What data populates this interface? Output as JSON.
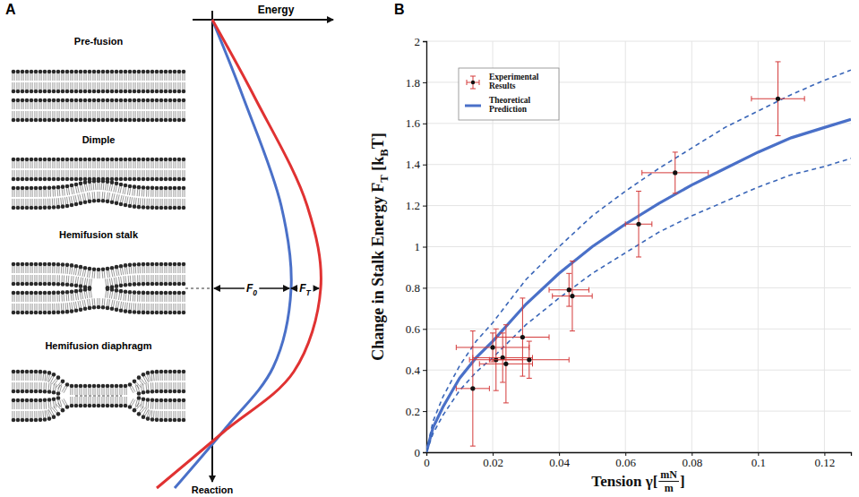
{
  "diagram": {
    "panel_label": "A",
    "stages": [
      "Pre-fusion",
      "Dimple",
      "Hemifusion stalk",
      "Hemifusion diaphragm"
    ],
    "energy_label": "Energy",
    "reaction_label": "Reaction",
    "barrier_labels": [
      [
        "F",
        {
          "sub": "0"
        }
      ],
      [
        "F",
        {
          "sub": "T"
        }
      ]
    ],
    "curve_colors": [
      "#4a70c8",
      "#e03232"
    ]
  },
  "chart_data": {
    "type": "scatter",
    "panel_label": "B",
    "x_label": [
      "Tension γ[",
      {
        "frac": [
          "mN",
          "m"
        ]
      },
      "]"
    ],
    "y_label": [
      "Change in Stalk Energy F",
      {
        "sub": "T"
      },
      " [k",
      {
        "sub": "B"
      },
      "T]"
    ],
    "xlim": [
      0,
      0.128
    ],
    "xticks": [
      0,
      0.02,
      0.04,
      0.06,
      0.08,
      0.1,
      0.12
    ],
    "ylim": [
      0,
      2
    ],
    "yticks": [
      0,
      0.2,
      0.4,
      0.6,
      0.8,
      1,
      1.2,
      1.4,
      1.6,
      1.8,
      2
    ],
    "grid": true,
    "legend": "upper left",
    "series": [
      {
        "name": "Experimental Results",
        "type": "scatter",
        "color": "#d43a3a",
        "marker": "circle",
        "x": [
          0.014,
          0.02,
          0.021,
          0.023,
          0.024,
          0.029,
          0.031,
          0.043,
          0.044,
          0.064,
          0.075,
          0.106
        ],
        "values": [
          0.31,
          0.51,
          0.45,
          0.46,
          0.43,
          0.56,
          0.45,
          0.79,
          0.76,
          1.11,
          1.36,
          1.72
        ],
        "x_error": [
          0.005,
          0.011,
          0.008,
          0.009,
          0.008,
          0.008,
          0.012,
          0.006,
          0.006,
          0.004,
          0.01,
          0.008
        ],
        "y_error": [
          0.28,
          0.07,
          0.15,
          0.12,
          0.19,
          0.19,
          0.09,
          0.08,
          0.17,
          0.16,
          0.1,
          0.18
        ]
      },
      {
        "name": "Theoretical Prediction",
        "type": "line",
        "color": "#4a70c8",
        "line_style": "solid",
        "x": [
          0,
          0.002,
          0.005,
          0.01,
          0.015,
          0.02,
          0.03,
          0.04,
          0.05,
          0.06,
          0.07,
          0.08,
          0.09,
          0.1,
          0.11,
          0.12,
          0.128
        ],
        "values": [
          0,
          0.12,
          0.22,
          0.36,
          0.46,
          0.54,
          0.72,
          0.87,
          1.0,
          1.11,
          1.21,
          1.3,
          1.38,
          1.46,
          1.53,
          1.58,
          1.62
        ]
      },
      {
        "type": "line",
        "color": "#3a66b8",
        "line_style": "dashed",
        "x": [
          0,
          0.002,
          0.005,
          0.01,
          0.015,
          0.02,
          0.03,
          0.04,
          0.05,
          0.06,
          0.07,
          0.08,
          0.09,
          0.1,
          0.11,
          0.12,
          0.128
        ],
        "values": [
          0,
          0.15,
          0.27,
          0.42,
          0.54,
          0.63,
          0.84,
          1.0,
          1.15,
          1.27,
          1.38,
          1.48,
          1.58,
          1.66,
          1.74,
          1.81,
          1.86
        ]
      },
      {
        "type": "line",
        "color": "#3a66b8",
        "line_style": "dashed",
        "x": [
          0,
          0.002,
          0.005,
          0.01,
          0.015,
          0.02,
          0.03,
          0.04,
          0.05,
          0.06,
          0.07,
          0.08,
          0.09,
          0.1,
          0.11,
          0.12,
          0.128
        ],
        "values": [
          0,
          0.09,
          0.18,
          0.3,
          0.39,
          0.46,
          0.62,
          0.75,
          0.87,
          0.97,
          1.07,
          1.15,
          1.22,
          1.29,
          1.35,
          1.39,
          1.43
        ]
      }
    ]
  }
}
